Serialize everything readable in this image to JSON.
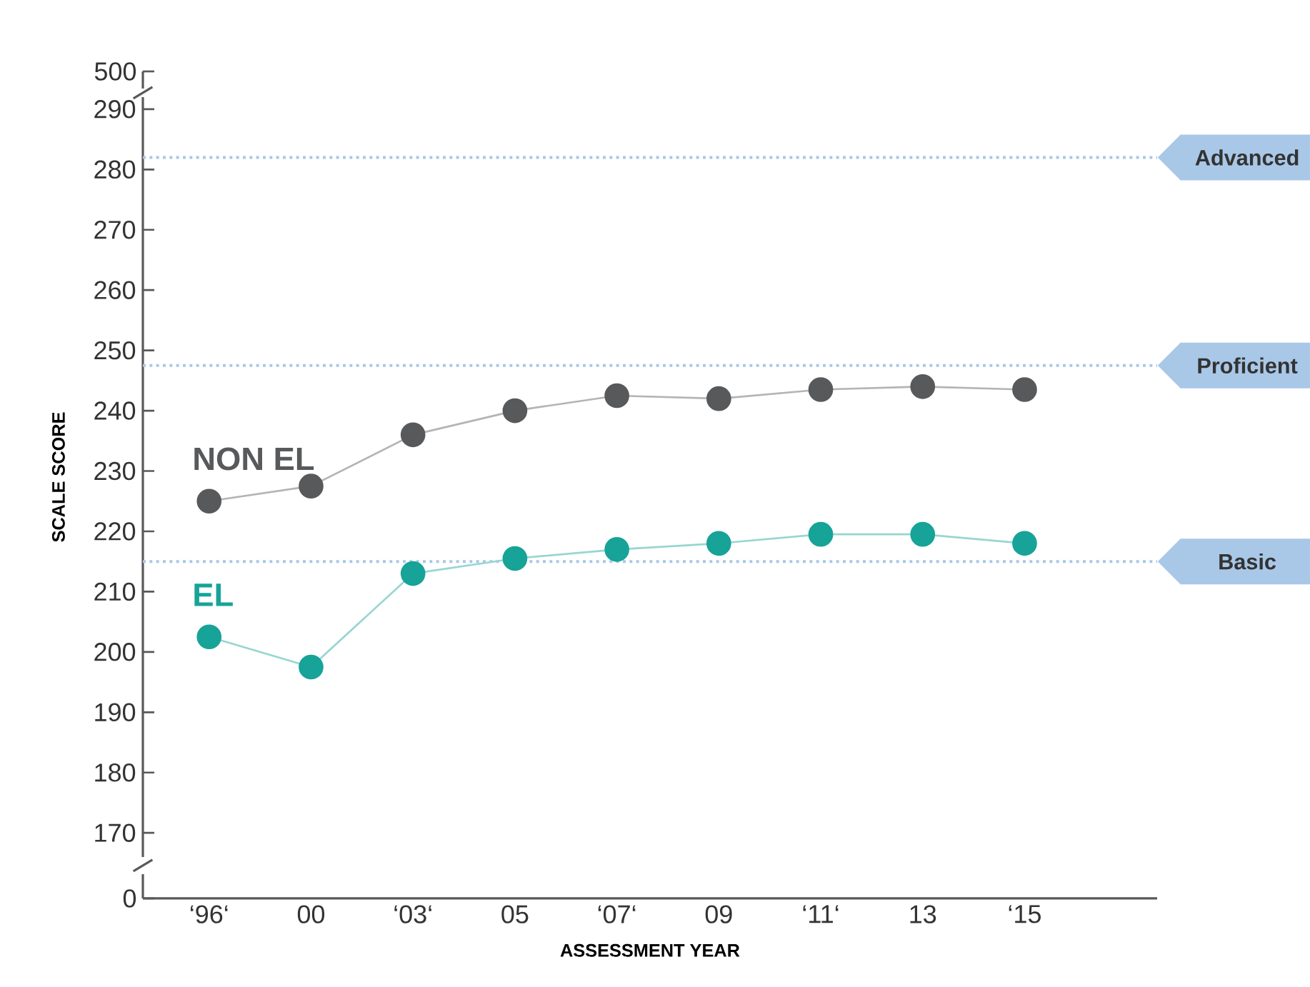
{
  "chart_data": [
    {
      "type": "other",
      "annotations": [
        "500"
      ]
    },
    {
      "type": "line",
      "ylabel": "SCALE SCORE",
      "xlabel": "ASSESSMENT YEAR",
      "categories": [
        "‘96‘",
        "00",
        "‘03‘",
        "05",
        "‘07‘",
        "09",
        "‘11‘",
        "13",
        "‘15"
      ],
      "ylim": [
        166,
        292
      ],
      "yticks": [
        170,
        180,
        190,
        200,
        210,
        220,
        230,
        240,
        250,
        260,
        270,
        280,
        290
      ],
      "series": [
        {
          "name": "NON EL",
          "color": "#58595b",
          "values": [
            225,
            227.5,
            236,
            240,
            242.5,
            242,
            243.5,
            244,
            243.5
          ]
        },
        {
          "name": "EL",
          "color": "#17a398",
          "values": [
            202.5,
            197.5,
            213,
            215.5,
            217,
            218,
            219.5,
            219.5,
            218
          ]
        }
      ],
      "ref_lines": [
        {
          "axis": "y",
          "value": 282,
          "label": "Advanced",
          "color": "#a9c8e8",
          "line_style": "dotted"
        },
        {
          "axis": "y",
          "value": 247.5,
          "label": "Proficient",
          "color": "#a9c8e8",
          "line_style": "dotted"
        },
        {
          "axis": "y",
          "value": 215,
          "label": "Basic",
          "color": "#a9c8e8",
          "line_style": "dotted"
        }
      ],
      "marker": "circle",
      "line_style": "solid",
      "legend": false,
      "grid": false
    },
    {
      "type": "other",
      "annotations": [
        "0"
      ]
    }
  ]
}
